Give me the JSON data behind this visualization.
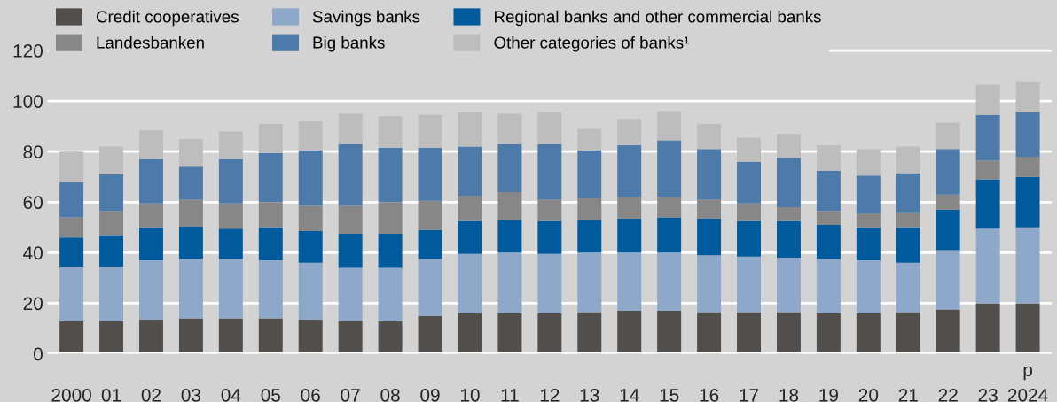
{
  "chart_data": {
    "type": "bar",
    "stacked": true,
    "categories": [
      "2000",
      "01",
      "02",
      "03",
      "04",
      "05",
      "06",
      "07",
      "08",
      "09",
      "10",
      "11",
      "12",
      "13",
      "14",
      "15",
      "16",
      "17",
      "18",
      "19",
      "20",
      "21",
      "22",
      "23",
      "2024"
    ],
    "series": [
      {
        "name": "Credit cooperatives",
        "color": "#524e4b",
        "values": [
          13,
          13,
          13.5,
          14,
          14,
          14,
          13.5,
          13,
          13,
          15,
          16,
          16,
          16,
          16.5,
          17,
          17,
          16.5,
          16.5,
          16.5,
          16,
          16,
          16.5,
          17.5,
          20,
          20
        ]
      },
      {
        "name": "Savings banks",
        "color": "#8ea8c9",
        "values": [
          21.5,
          21.5,
          23.5,
          23.5,
          23.5,
          23,
          22.5,
          21,
          21,
          22.5,
          23.5,
          24,
          23.5,
          23.5,
          23,
          23,
          22.5,
          22,
          21.5,
          21.5,
          21,
          19.5,
          23.5,
          29.5,
          30
        ]
      },
      {
        "name": "Regional banks and other commercial banks",
        "color": "#005a9b",
        "values": [
          11.5,
          12.5,
          13,
          13,
          12,
          13,
          12.5,
          13.5,
          13.5,
          11.5,
          13,
          13,
          13,
          13,
          13.5,
          14,
          14.5,
          14,
          14.5,
          13.5,
          13,
          14,
          16,
          19.5,
          20
        ]
      },
      {
        "name": "Landesbanken",
        "color": "#878787",
        "values": [
          8,
          9.5,
          9.5,
          10.5,
          10,
          10,
          10,
          11,
          12.5,
          11.5,
          10,
          11,
          8.5,
          8.5,
          8.5,
          8,
          7.5,
          7,
          5.5,
          5.5,
          5.5,
          6,
          6,
          7.5,
          8
        ]
      },
      {
        "name": "Big banks",
        "color": "#4d7aa8",
        "values": [
          14,
          14.5,
          17.5,
          13,
          17.5,
          19.5,
          22,
          24.5,
          21.5,
          21,
          19.5,
          19,
          22,
          19,
          20.5,
          22.5,
          20,
          16.5,
          19.5,
          16,
          15,
          15.5,
          18,
          18,
          17.5
        ]
      },
      {
        "name": "Other categories of banks¹",
        "color": "#bdbdbd",
        "values": [
          12,
          11,
          11.5,
          11,
          11,
          11.5,
          11.5,
          12,
          12.5,
          13,
          13.5,
          12,
          12.5,
          8.5,
          10.5,
          11.5,
          10,
          9.5,
          9.5,
          10,
          10.5,
          10.5,
          10.5,
          12,
          12
        ]
      }
    ],
    "ylim": [
      0,
      140
    ],
    "yticks": [
      0,
      20,
      40,
      60,
      80,
      100,
      120
    ],
    "grid": "y",
    "legend": "top left",
    "annotations": [
      "p"
    ]
  }
}
